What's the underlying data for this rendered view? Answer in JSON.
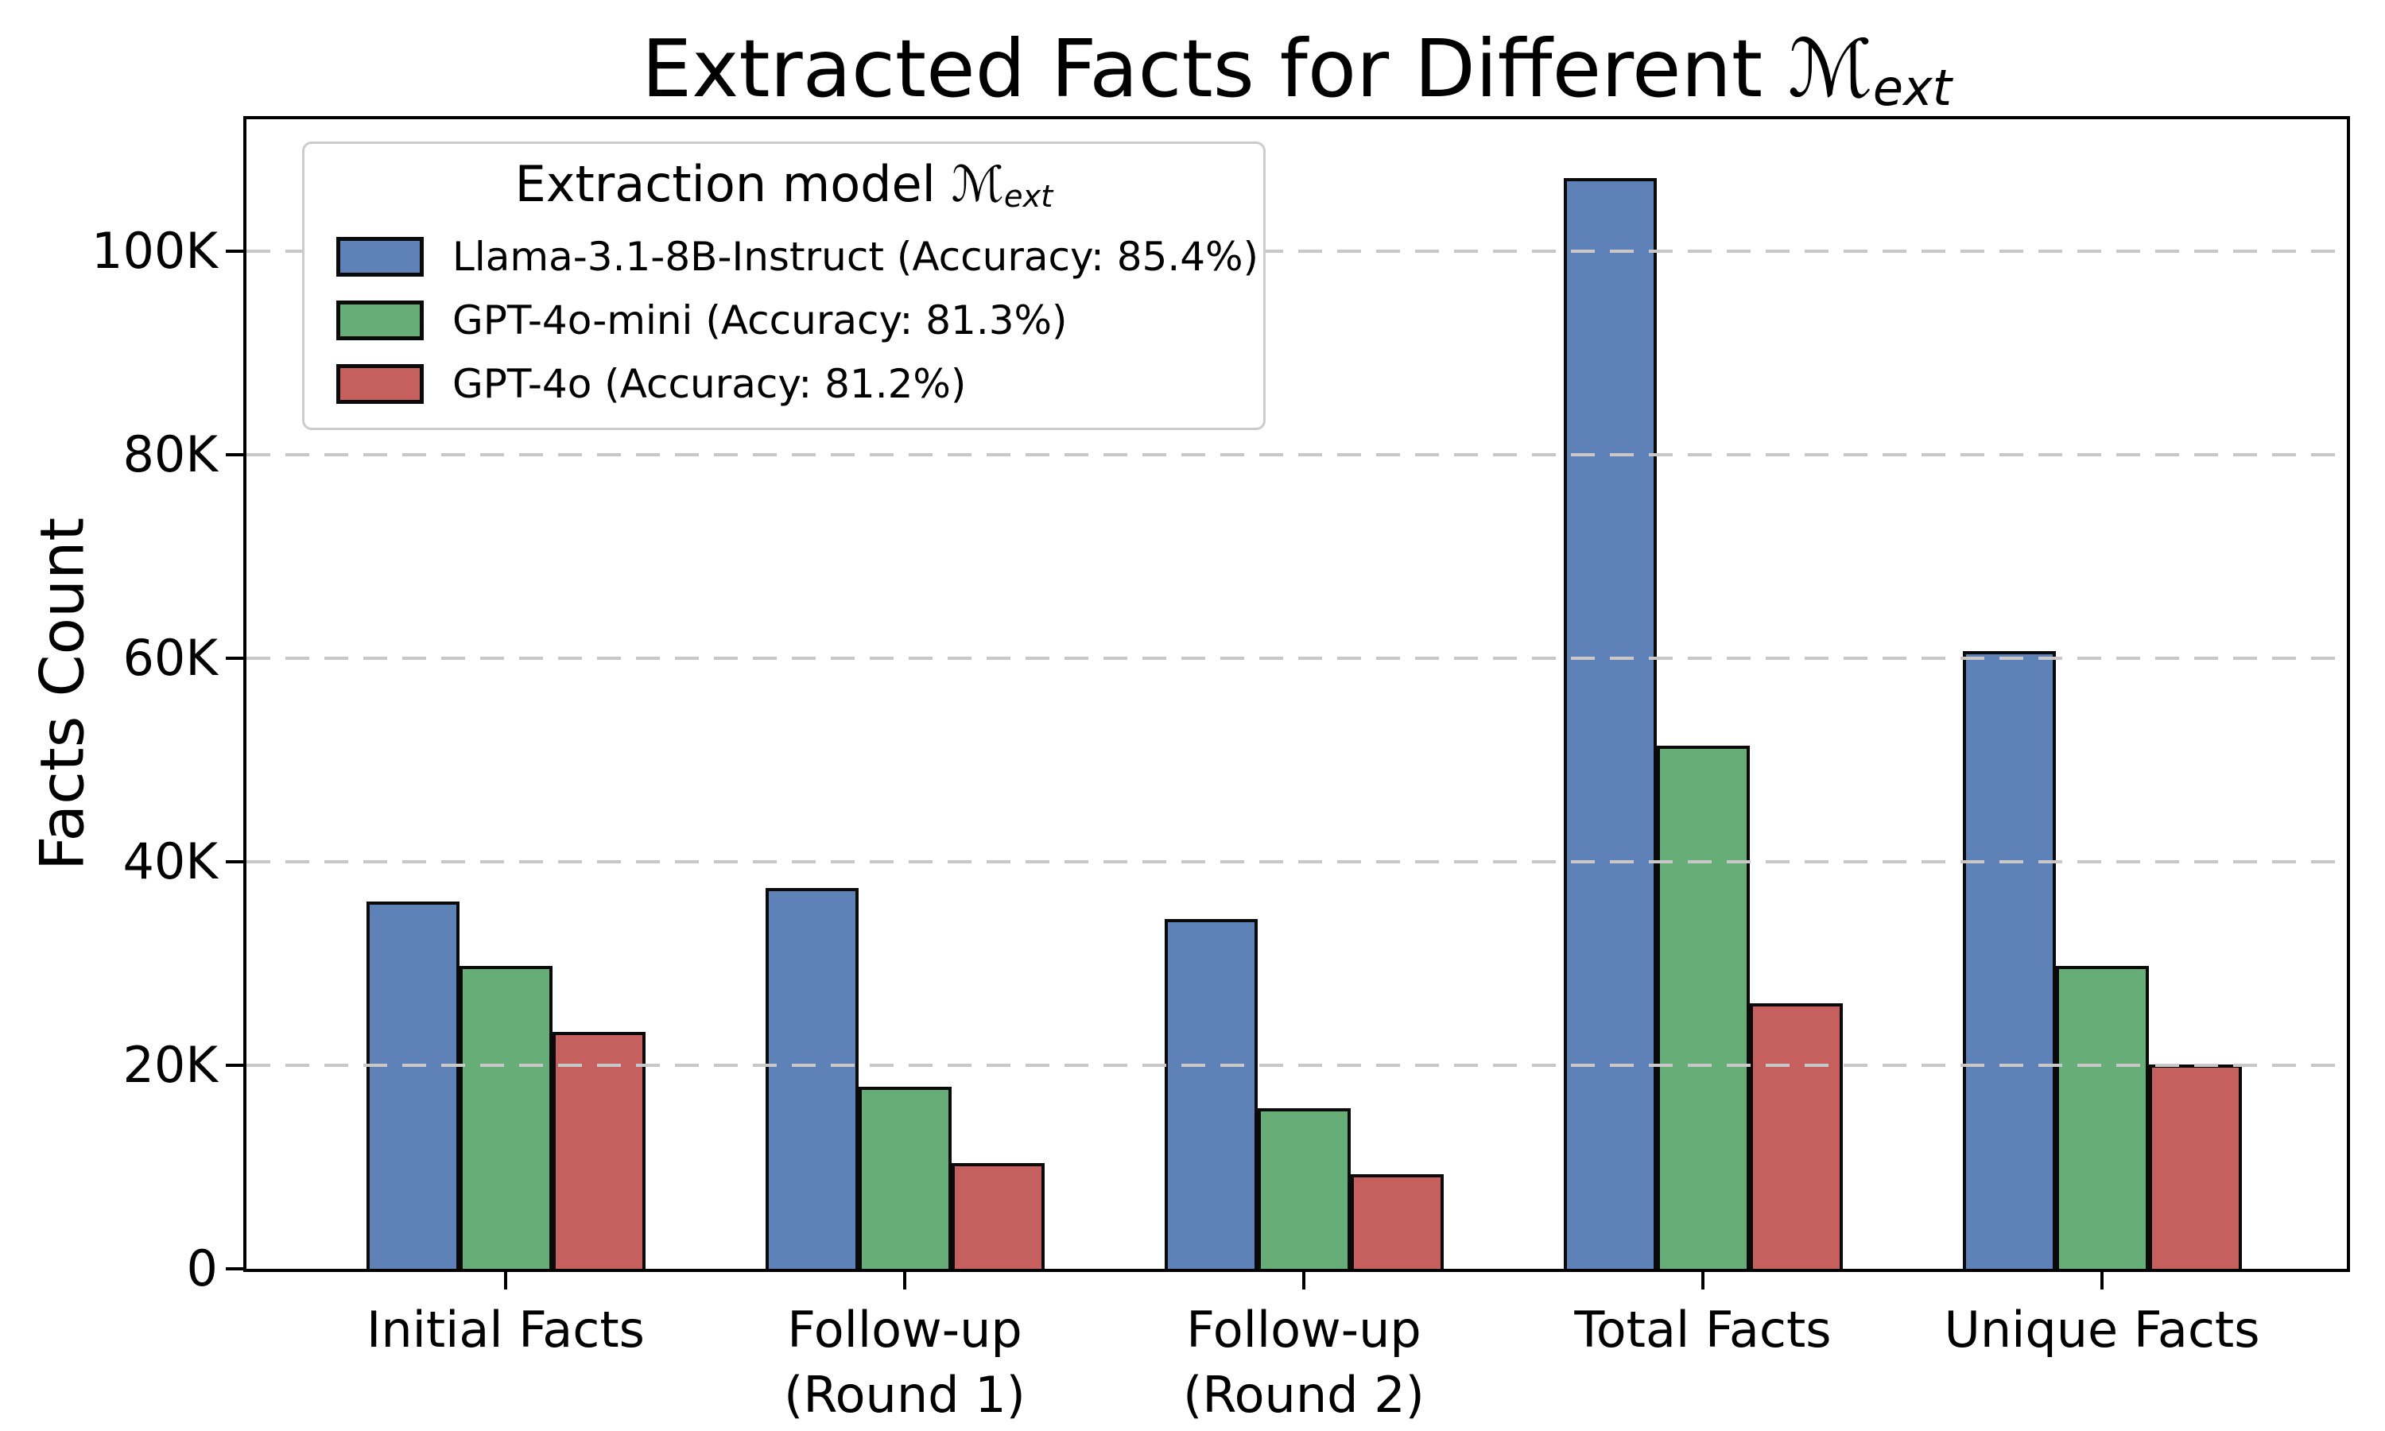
{
  "figure": {
    "title_prefix": "Extracted Facts for Different ",
    "math_symbol": "ℳ",
    "math_subscript": "ext",
    "ylabel": "Facts Count"
  },
  "legend": {
    "title_prefix": "Extraction model ",
    "math_symbol": "ℳ",
    "math_subscript": "ext"
  },
  "chart_data": {
    "type": "bar",
    "title": "Extracted Facts for Different M_ext",
    "xlabel": "",
    "ylabel": "Facts Count",
    "categories": [
      "Initial Facts",
      "Follow-up\n(Round 1)",
      "Follow-up\n(Round 2)",
      "Total Facts",
      "Unique Facts"
    ],
    "series": [
      {
        "name": "Llama-3.1-8B-Instruct",
        "accuracy": "85.4%",
        "legend_label": "Llama-3.1-8B-Instruct (Accuracy: 85.4%)",
        "color": "#5e81b8",
        "values": [
          36100,
          37400,
          34400,
          107200,
          60700
        ]
      },
      {
        "name": "GPT-4o-mini",
        "accuracy": "81.3%",
        "legend_label": "GPT-4o-mini (Accuracy: 81.3%)",
        "color": "#66ad78",
        "values": [
          29800,
          17900,
          15800,
          51400,
          29800
        ]
      },
      {
        "name": "GPT-4o",
        "accuracy": "81.2%",
        "legend_label": "GPT-4o (Accuracy: 81.2%)",
        "color": "#c5605f",
        "values": [
          23300,
          10400,
          9300,
          26100,
          20100
        ]
      }
    ],
    "yticks": [
      {
        "value": 0,
        "label": "0"
      },
      {
        "value": 20000,
        "label": "20K"
      },
      {
        "value": 40000,
        "label": "40K"
      },
      {
        "value": 60000,
        "label": "60K"
      },
      {
        "value": 80000,
        "label": "80K"
      },
      {
        "value": 100000,
        "label": "100K"
      }
    ],
    "ylim": [
      0,
      113000
    ],
    "grid": "horizontal dashed, drawn above bars",
    "legend_position": "upper left"
  },
  "colors": {
    "bar_edge": "#0a0a0a",
    "gridline": "#c8c8c8",
    "legend_border": "#cccccc",
    "background": "#ffffff",
    "text": "#000000"
  }
}
